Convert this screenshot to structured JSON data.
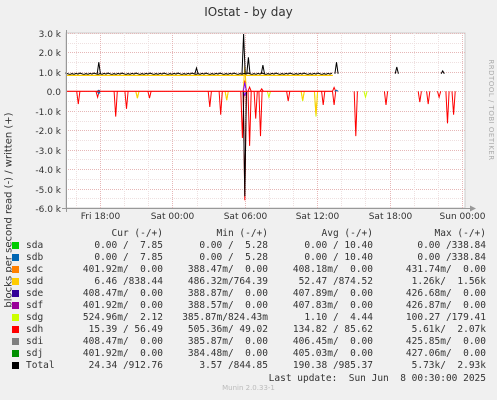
{
  "chart_data": {
    "type": "line",
    "title": "IOstat - by day",
    "ylabel": "blocks per second read (-) / written (+)",
    "ylim": [
      -6000,
      3000
    ],
    "yticks": [
      {
        "value": 3000,
        "label": "3.0 k"
      },
      {
        "value": 2000,
        "label": "2.0 k"
      },
      {
        "value": 1000,
        "label": "1.0 k"
      },
      {
        "value": 0,
        "label": "0.0"
      },
      {
        "value": -1000,
        "label": "-1.0 k"
      },
      {
        "value": -2000,
        "label": "-2.0 k"
      },
      {
        "value": -3000,
        "label": "-3.0 k"
      },
      {
        "value": -4000,
        "label": "-4.0 k"
      },
      {
        "value": -5000,
        "label": "-5.0 k"
      },
      {
        "value": -6000,
        "label": "-6.0 k"
      }
    ],
    "xlim_hours": [
      12.5,
      37.3
    ],
    "xticks": [
      {
        "hour": 18,
        "label": "Fri 18:00"
      },
      {
        "hour": 24,
        "label": "Sat 00:00"
      },
      {
        "hour": 30,
        "label": "Sat 06:00"
      },
      {
        "hour": 36,
        "label": "Sat 12:00"
      },
      {
        "hour": 42,
        "label": "Sat 18:00"
      },
      {
        "hour": 48,
        "label": "Sun 00:00"
      }
    ],
    "grid": true,
    "series": [
      {
        "name": "sdh",
        "color": "#ff0000",
        "read_spikes": [
          [
            16.2,
            -650
          ],
          [
            17.8,
            -300
          ],
          [
            19.3,
            -1300
          ],
          [
            20.2,
            -900
          ],
          [
            22.1,
            -350
          ],
          [
            27.1,
            -800
          ],
          [
            28.0,
            -1200
          ],
          [
            29.8,
            -2400
          ],
          [
            30.0,
            -5600
          ],
          [
            30.4,
            -2800
          ],
          [
            30.9,
            -1400
          ],
          [
            31.3,
            -2300
          ],
          [
            33.6,
            -500
          ],
          [
            36.5,
            -700
          ],
          [
            37.4,
            -700
          ],
          [
            39.2,
            -2300
          ],
          [
            41.7,
            -700
          ],
          [
            44.5,
            -550
          ],
          [
            45.2,
            -650
          ],
          [
            46.1,
            -300
          ],
          [
            46.8,
            -1650
          ],
          [
            47.3,
            -1200
          ]
        ],
        "write_spikes": [
          [
            30.0,
            550
          ],
          [
            30.4,
            220
          ],
          [
            31.4,
            130
          ],
          [
            37.4,
            200
          ]
        ]
      },
      {
        "name": "sdg",
        "color": "#ccff00",
        "read_spikes": [
          [
            21.1,
            -350
          ],
          [
            28.5,
            -450
          ],
          [
            32.0,
            -300
          ],
          [
            34.8,
            -500
          ],
          [
            35.9,
            -1300
          ],
          [
            40.0,
            -300
          ]
        ],
        "write_spikes": []
      },
      {
        "name": "sdd",
        "color": "#ffcc00",
        "read_spikes": [
          [
            21.1,
            -350
          ],
          [
            28.5,
            -450
          ],
          [
            34.8,
            -450
          ],
          [
            35.9,
            -1200
          ]
        ],
        "write_spikes": [
          [
            30.0,
            1300
          ]
        ]
      },
      {
        "name": "sdf",
        "color": "#8000ff",
        "read_spikes": [
          [
            30.0,
            -200
          ]
        ],
        "write_spikes": [
          [
            30.0,
            450
          ]
        ]
      },
      {
        "name": "sda",
        "color": "#00cc00",
        "read_spikes": [],
        "write_spikes": []
      },
      {
        "name": "sdb",
        "color": "#0066b3",
        "read_spikes": [
          [
            17.9,
            -120
          ]
        ],
        "write_spikes": [
          [
            17.9,
            60
          ],
          [
            37.6,
            60
          ]
        ]
      },
      {
        "name": "Total",
        "color": "#000000",
        "baseline_write": 900,
        "write_spikes": [
          [
            17.9,
            1500
          ],
          [
            26.0,
            1200
          ],
          [
            29.9,
            2950
          ],
          [
            30.3,
            1750
          ],
          [
            31.5,
            1350
          ],
          [
            37.6,
            1500
          ],
          [
            42.6,
            1250
          ],
          [
            46.4,
            1050
          ]
        ],
        "read_spikes": [
          [
            30.0,
            -5400
          ]
        ]
      }
    ]
  },
  "legend": {
    "headers": [
      "Cur (-/+)",
      "Min (-/+)",
      "Avg (-/+)",
      "Max (-/+)"
    ],
    "rows": [
      {
        "name": "sda",
        "color": "#00cc00",
        "cur": "0.00 /  7.85",
        "min": "0.00 /  5.28",
        "avg": "0.00 / 10.40",
        "max": "0.00 /338.84"
      },
      {
        "name": "sdb",
        "color": "#0066b3",
        "cur": "0.00 /  7.85",
        "min": "0.00 /  5.28",
        "avg": "0.00 / 10.40",
        "max": "0.00 /338.84"
      },
      {
        "name": "sdc",
        "color": "#ff8000",
        "cur": "401.92m/  0.00",
        "min": "388.47m/  0.00",
        "avg": "408.18m/  0.00",
        "max": "431.74m/  0.00"
      },
      {
        "name": "sdd",
        "color": "#ffcc00",
        "cur": "6.46 /838.44",
        "min": "486.32m/764.39",
        "avg": "52.47 /874.52",
        "max": "1.26k/  1.56k"
      },
      {
        "name": "sde",
        "color": "#330099",
        "cur": "408.47m/  0.00",
        "min": "388.87m/  0.00",
        "avg": "407.89m/  0.00",
        "max": "426.68m/  0.00"
      },
      {
        "name": "sdf",
        "color": "#990099",
        "cur": "401.92m/  0.00",
        "min": "388.57m/  0.00",
        "avg": "407.83m/  0.00",
        "max": "426.87m/  0.00"
      },
      {
        "name": "sdg",
        "color": "#ccff00",
        "cur": "524.96m/  2.12",
        "min": "385.87m/824.43m",
        "avg": "1.10 /  4.44",
        "max": "100.27 /179.41"
      },
      {
        "name": "sdh",
        "color": "#ff0000",
        "cur": "15.39 / 56.49",
        "min": "505.36m/ 49.02",
        "avg": "134.82 / 85.62",
        "max": "5.61k/  2.07k"
      },
      {
        "name": "sdi",
        "color": "#808080",
        "cur": "408.47m/  0.00",
        "min": "385.87m/  0.00",
        "avg": "406.45m/  0.00",
        "max": "425.85m/  0.00"
      },
      {
        "name": "sdj",
        "color": "#008f00",
        "cur": "401.92m/  0.00",
        "min": "384.48m/  0.00",
        "avg": "405.03m/  0.00",
        "max": "427.06m/  0.00"
      },
      {
        "name": "Total",
        "color": "#000000",
        "cur": "24.34 /912.76",
        "min": "3.57 /844.85",
        "avg": "190.38 /985.37",
        "max": "5.73k/  2.93k"
      }
    ]
  },
  "footer": {
    "last_update": "Last update:  Sun Jun  8 00:30:00 2025",
    "version": "Munin 2.0.33-1",
    "vendor": "RRDTOOL / TOBI OETIKER"
  }
}
